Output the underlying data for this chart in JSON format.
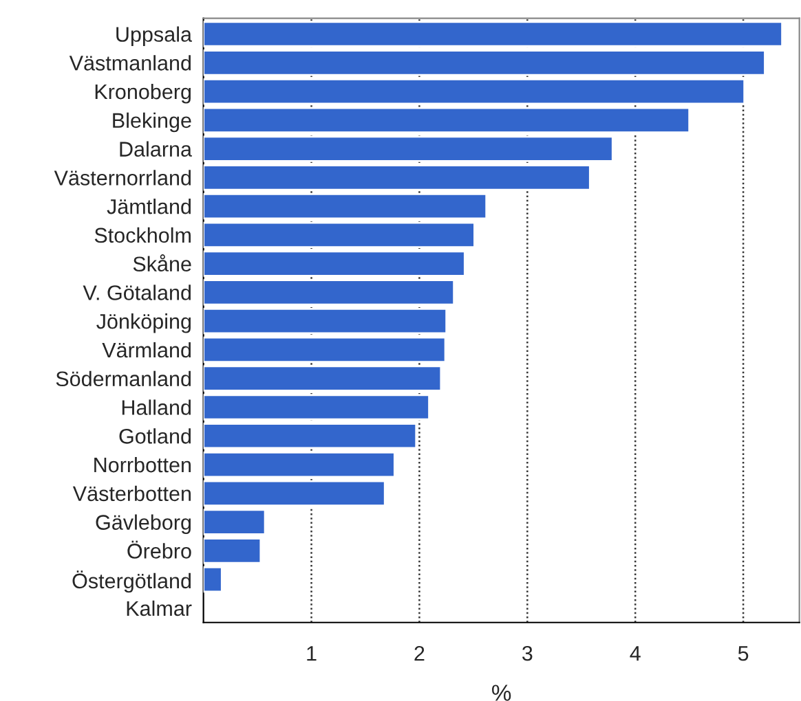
{
  "chart_data": {
    "type": "bar",
    "orientation": "horizontal",
    "xlabel": "%",
    "categories": [
      "Uppsala",
      "Västmanland",
      "Kronoberg",
      "Blekinge",
      "Dalarna",
      "Västernorrland",
      "Jämtland",
      "Stockholm",
      "Skåne",
      "V. Götaland",
      "Jönköping",
      "Värmland",
      "Södermanland",
      "Halland",
      "Gotland",
      "Norrbotten",
      "Västerbotten",
      "Gävleborg",
      "Örebro",
      "Östergötland",
      "Kalmar"
    ],
    "values": [
      5.36,
      5.2,
      5.01,
      4.5,
      3.79,
      3.58,
      2.62,
      2.51,
      2.42,
      2.32,
      2.25,
      2.24,
      2.2,
      2.09,
      1.97,
      1.77,
      1.68,
      0.57,
      0.53,
      0.17,
      null
    ],
    "color": "#3366cc",
    "xlim": [
      0,
      5.52
    ],
    "xticks": [
      1,
      2,
      3,
      4,
      5
    ],
    "grid": "x"
  }
}
